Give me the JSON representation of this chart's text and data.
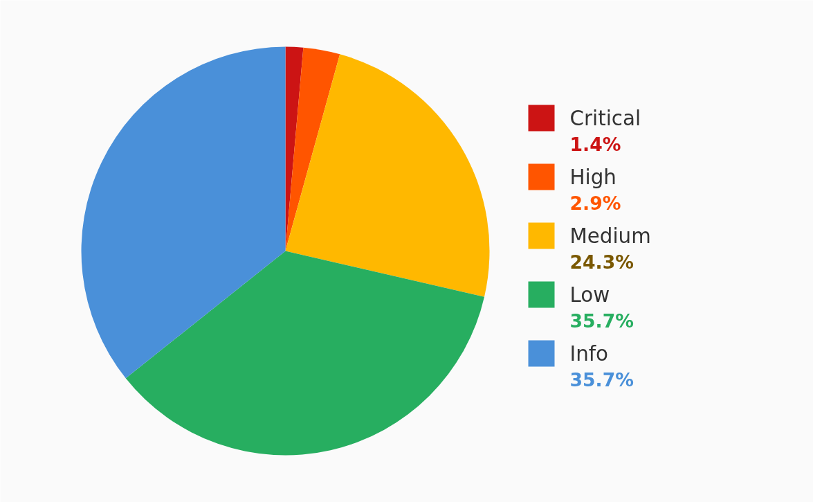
{
  "chart_data": {
    "type": "pie",
    "categories": [
      "Critical",
      "High",
      "Medium",
      "Low",
      "Info"
    ],
    "values": [
      1.4,
      2.9,
      24.3,
      35.7,
      35.7
    ],
    "colors": [
      "#cc1414",
      "#ff5500",
      "#ffb800",
      "#27ae60",
      "#4a90d9"
    ],
    "value_labels": [
      "1.4%",
      "2.9%",
      "24.3%",
      "35.7%",
      "35.7%"
    ],
    "legend": "right"
  }
}
